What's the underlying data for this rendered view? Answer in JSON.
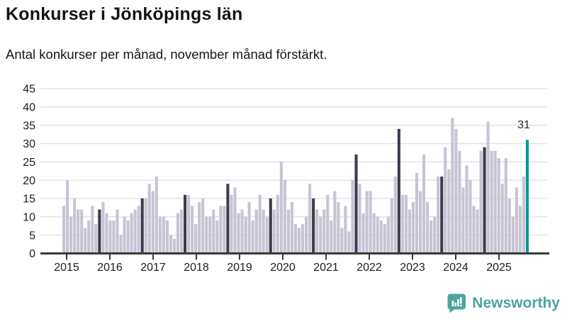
{
  "header": {
    "title": "Konkurser i Jönköpings län",
    "subtitle": "Antal konkurser per månad, november månad förstärkt."
  },
  "chart_data": {
    "type": "bar",
    "title": "Konkurser i Jönköpings län",
    "xlabel": "",
    "ylabel": "",
    "ylim": [
      0,
      45
    ],
    "y_ticks": [
      0,
      5,
      10,
      15,
      20,
      25,
      30,
      35,
      40,
      45
    ],
    "x_tick_labels": [
      "2015",
      "2016",
      "2017",
      "2018",
      "2019",
      "2020",
      "2021",
      "2022",
      "2023",
      "2024",
      "2025"
    ],
    "grid": true,
    "highlight_rule": "november months emphasized dark, latest month teal",
    "last_value_label": "31",
    "years": [
      {
        "year": 2015,
        "values": [
          13,
          20,
          10,
          15,
          12,
          12,
          7,
          9,
          13,
          8,
          12,
          14
        ]
      },
      {
        "year": 2016,
        "values": [
          11,
          9,
          9,
          12,
          5,
          10,
          9,
          11,
          12,
          13,
          15,
          15
        ]
      },
      {
        "year": 2017,
        "values": [
          19,
          17,
          21,
          10,
          10,
          9,
          5,
          4,
          11,
          12,
          16,
          16
        ]
      },
      {
        "year": 2018,
        "values": [
          13,
          8,
          14,
          15,
          10,
          10,
          12,
          9,
          13,
          13,
          19,
          16
        ]
      },
      {
        "year": 2019,
        "values": [
          18,
          11,
          12,
          10,
          14,
          9,
          12,
          16,
          12,
          10,
          15,
          12
        ]
      },
      {
        "year": 2020,
        "values": [
          16,
          25,
          20,
          12,
          14,
          8,
          7,
          8,
          10,
          19,
          15,
          12
        ]
      },
      {
        "year": 2021,
        "values": [
          10,
          12,
          16,
          9,
          17,
          14,
          7,
          13,
          6,
          20,
          27,
          19
        ]
      },
      {
        "year": 2022,
        "values": [
          11,
          17,
          17,
          11,
          10,
          9,
          8,
          10,
          15,
          21,
          34,
          16
        ]
      },
      {
        "year": 2023,
        "values": [
          16,
          12,
          14,
          22,
          17,
          27,
          14,
          9,
          10,
          21,
          21,
          29
        ]
      },
      {
        "year": 2024,
        "values": [
          23,
          37,
          34,
          28,
          18,
          24,
          20,
          13,
          12,
          28,
          29,
          36
        ]
      },
      {
        "year": 2025,
        "values": [
          28,
          28,
          26,
          19,
          26,
          15,
          10,
          18,
          13,
          21,
          31
        ]
      }
    ],
    "colors": {
      "bar": "#c7c4d4",
      "november": "#3e3c4e",
      "latest": "#029a92",
      "grid": "#e4e4e6",
      "axis": "#3a3a3a",
      "label": "#1d1d1d"
    }
  },
  "footer": {
    "brand": "Newsworthy",
    "brand_color": "#4CA49D"
  }
}
